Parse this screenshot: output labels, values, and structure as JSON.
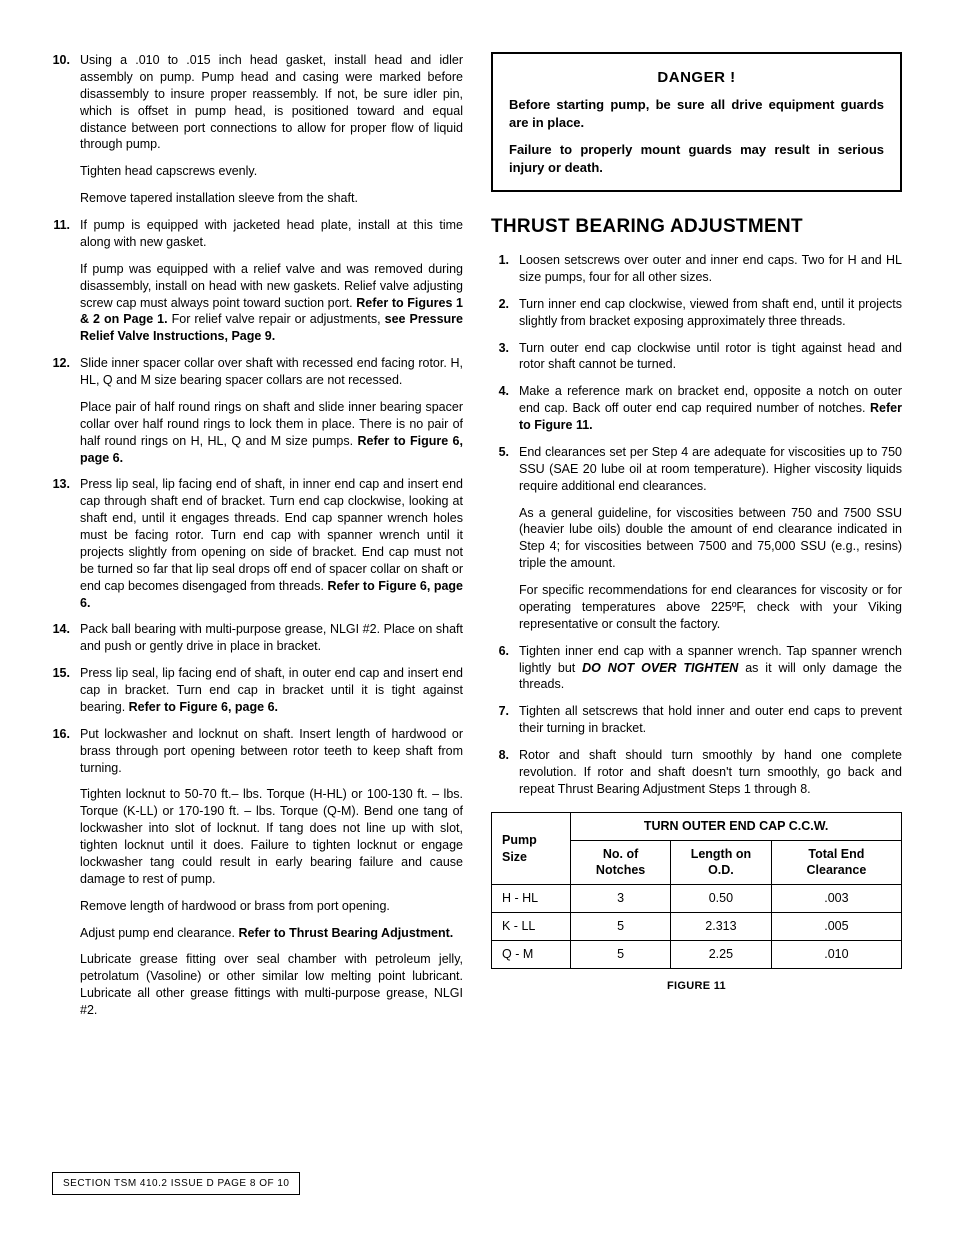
{
  "left": {
    "items": [
      {
        "n": "10.",
        "paras": [
          "Using a .010 to .015 inch head gasket, install head and idler assembly on pump. Pump head and casing were marked before disassembly to insure proper reassembly. If not, be sure idler pin, which is offset in pump head, is positioned toward and equal distance between port connections to allow for proper flow of liquid through pump.",
          "Tighten head capscrews evenly.",
          "Remove tapered installation sleeve from the shaft."
        ]
      },
      {
        "n": "11.",
        "paras": [
          "If pump is equipped with jacketed head plate, install at this time along with new gasket.",
          {
            "runs": [
              {
                "t": "If pump was equipped with a relief valve and was removed during disassembly, install on head with new gaskets. Relief valve adjusting screw cap must always point toward suction port. "
              },
              {
                "t": "Refer to Figures 1 & 2 on Page 1.",
                "b": true
              },
              {
                "t": " For relief valve repair or adjustments, "
              },
              {
                "t": "see Pressure Relief Valve Instructions, Page 9.",
                "b": true
              }
            ]
          }
        ]
      },
      {
        "n": "12.",
        "paras": [
          "Slide inner spacer collar over shaft with recessed end facing rotor. H, HL, Q and M size bearing spacer collars are not recessed.",
          {
            "runs": [
              {
                "t": "Place pair of half round rings on shaft and slide inner bearing spacer collar over half round rings to lock them in place. There is no pair of half round rings on H, HL, Q and M size pumps. "
              },
              {
                "t": "Refer to Figure 6, page 6.",
                "b": true
              }
            ]
          }
        ]
      },
      {
        "n": "13.",
        "paras": [
          {
            "runs": [
              {
                "t": "Press lip seal, lip facing end of shaft, in inner end cap and insert end cap through shaft end of bracket. Turn end cap clockwise, looking at shaft end, until it engages threads. End cap spanner wrench holes must be facing rotor. Turn end cap with spanner wrench until it projects slightly from opening on side of bracket. End cap must not be turned so far that lip seal drops off end of spacer collar on shaft or end cap becomes disengaged from threads. "
              },
              {
                "t": "Refer to Figure 6, page 6.",
                "b": true
              }
            ]
          }
        ]
      },
      {
        "n": "14.",
        "paras": [
          "Pack ball bearing with multi-purpose grease, NLGI #2. Place on shaft and push or gently drive in place in bracket."
        ]
      },
      {
        "n": "15.",
        "paras": [
          {
            "runs": [
              {
                "t": "Press lip seal, lip facing end of shaft, in outer end cap and insert end cap in bracket. Turn end cap in bracket until it is tight against bearing. "
              },
              {
                "t": "Refer to Figure 6, page 6.",
                "b": true
              }
            ]
          }
        ]
      },
      {
        "n": "16.",
        "paras": [
          "Put lockwasher and locknut on shaft. Insert length of hardwood or brass through port opening between rotor teeth to keep shaft from turning.",
          "Tighten locknut to 50-70 ft.– lbs. Torque (H-HL) or 100-130 ft. – lbs. Torque (K-LL) or 170-190 ft. – lbs. Torque (Q-M). Bend one tang of lockwasher into slot of locknut. If tang does not line up with slot, tighten locknut until it does. Failure to tighten locknut or engage lockwasher tang could result in early bearing failure and cause damage to rest of pump.",
          "Remove length of hardwood or brass from port opening.",
          {
            "runs": [
              {
                "t": "Adjust pump end clearance. "
              },
              {
                "t": "Refer to Thrust Bearing Adjustment.",
                "b": true
              }
            ]
          },
          "Lubricate grease fitting over seal chamber with petroleum jelly, petrolatum (Vasoline) or other similar low melting point lubricant. Lubricate all other grease fittings with multi-purpose grease, NLGI #2."
        ]
      }
    ]
  },
  "danger": {
    "title": "DANGER !",
    "p1": "Before starting pump, be sure all drive equipment guards are in place.",
    "p2": "Failure to properly mount guards may result in serious injury or death."
  },
  "section_title": "THRUST BEARING ADJUSTMENT",
  "right": {
    "items": [
      {
        "n": "1.",
        "paras": [
          "Loosen setscrews over outer and inner end caps. Two for H and HL size pumps, four for all other sizes."
        ]
      },
      {
        "n": "2.",
        "paras": [
          "Turn inner end cap clockwise, viewed from shaft end, until it projects slightly from bracket exposing approximately three threads."
        ]
      },
      {
        "n": "3.",
        "paras": [
          "Turn outer end cap clockwise until rotor is tight against head and rotor shaft cannot be turned."
        ]
      },
      {
        "n": "4.",
        "paras": [
          {
            "runs": [
              {
                "t": "Make a reference mark on bracket end, opposite a notch on outer end cap. Back off outer end cap required number of notches. "
              },
              {
                "t": "Refer to Figure 11.",
                "b": true
              }
            ]
          }
        ]
      },
      {
        "n": "5.",
        "paras": [
          "End clearances set per Step 4 are adequate for viscosities up to 750 SSU (SAE 20 lube oil at room temperature). Higher viscosity liquids require additional end clearances.",
          "As a general guideline, for viscosities between 750 and 7500 SSU (heavier lube oils) double the amount of end clearance indicated in Step 4; for viscosities between 7500 and 75,000 SSU (e.g., resins) triple the amount.",
          "For specific recommendations for end clearances for viscosity or for operating temperatures above 225ºF, check with your Viking representative or consult the factory."
        ]
      },
      {
        "n": "6.",
        "paras": [
          {
            "runs": [
              {
                "t": "Tighten inner end cap with a spanner wrench. Tap spanner wrench lightly but "
              },
              {
                "t": "DO NOT OVER TIGHTEN",
                "bi": true
              },
              {
                "t": " as it will only damage the threads."
              }
            ]
          }
        ]
      },
      {
        "n": "7.",
        "paras": [
          "Tighten all setscrews that hold inner and outer end caps to prevent their turning in bracket."
        ]
      },
      {
        "n": "8.",
        "paras": [
          "Rotor and shaft should turn smoothly by hand one complete revolution. If rotor and shaft doesn't turn smoothly, go back and repeat Thrust Bearing Adjustment Steps 1 through 8."
        ]
      }
    ]
  },
  "table": {
    "header_span": "TURN OUTER END CAP C.C.W.",
    "col0": "Pump Size",
    "col1": "No. of Notches",
    "col2": "Length on O.D.",
    "col3": "Total End Clearance",
    "rows": [
      [
        "H - HL",
        "3",
        "0.50",
        ".003"
      ],
      [
        "K - LL",
        "5",
        "2.313",
        ".005"
      ],
      [
        "Q - M",
        "5",
        "2.25",
        ".010"
      ]
    ]
  },
  "figure_caption": "FIGURE 11",
  "footer": "SECTION  TSM  410.2      ISSUE     D          PAGE  8  OF   10"
}
